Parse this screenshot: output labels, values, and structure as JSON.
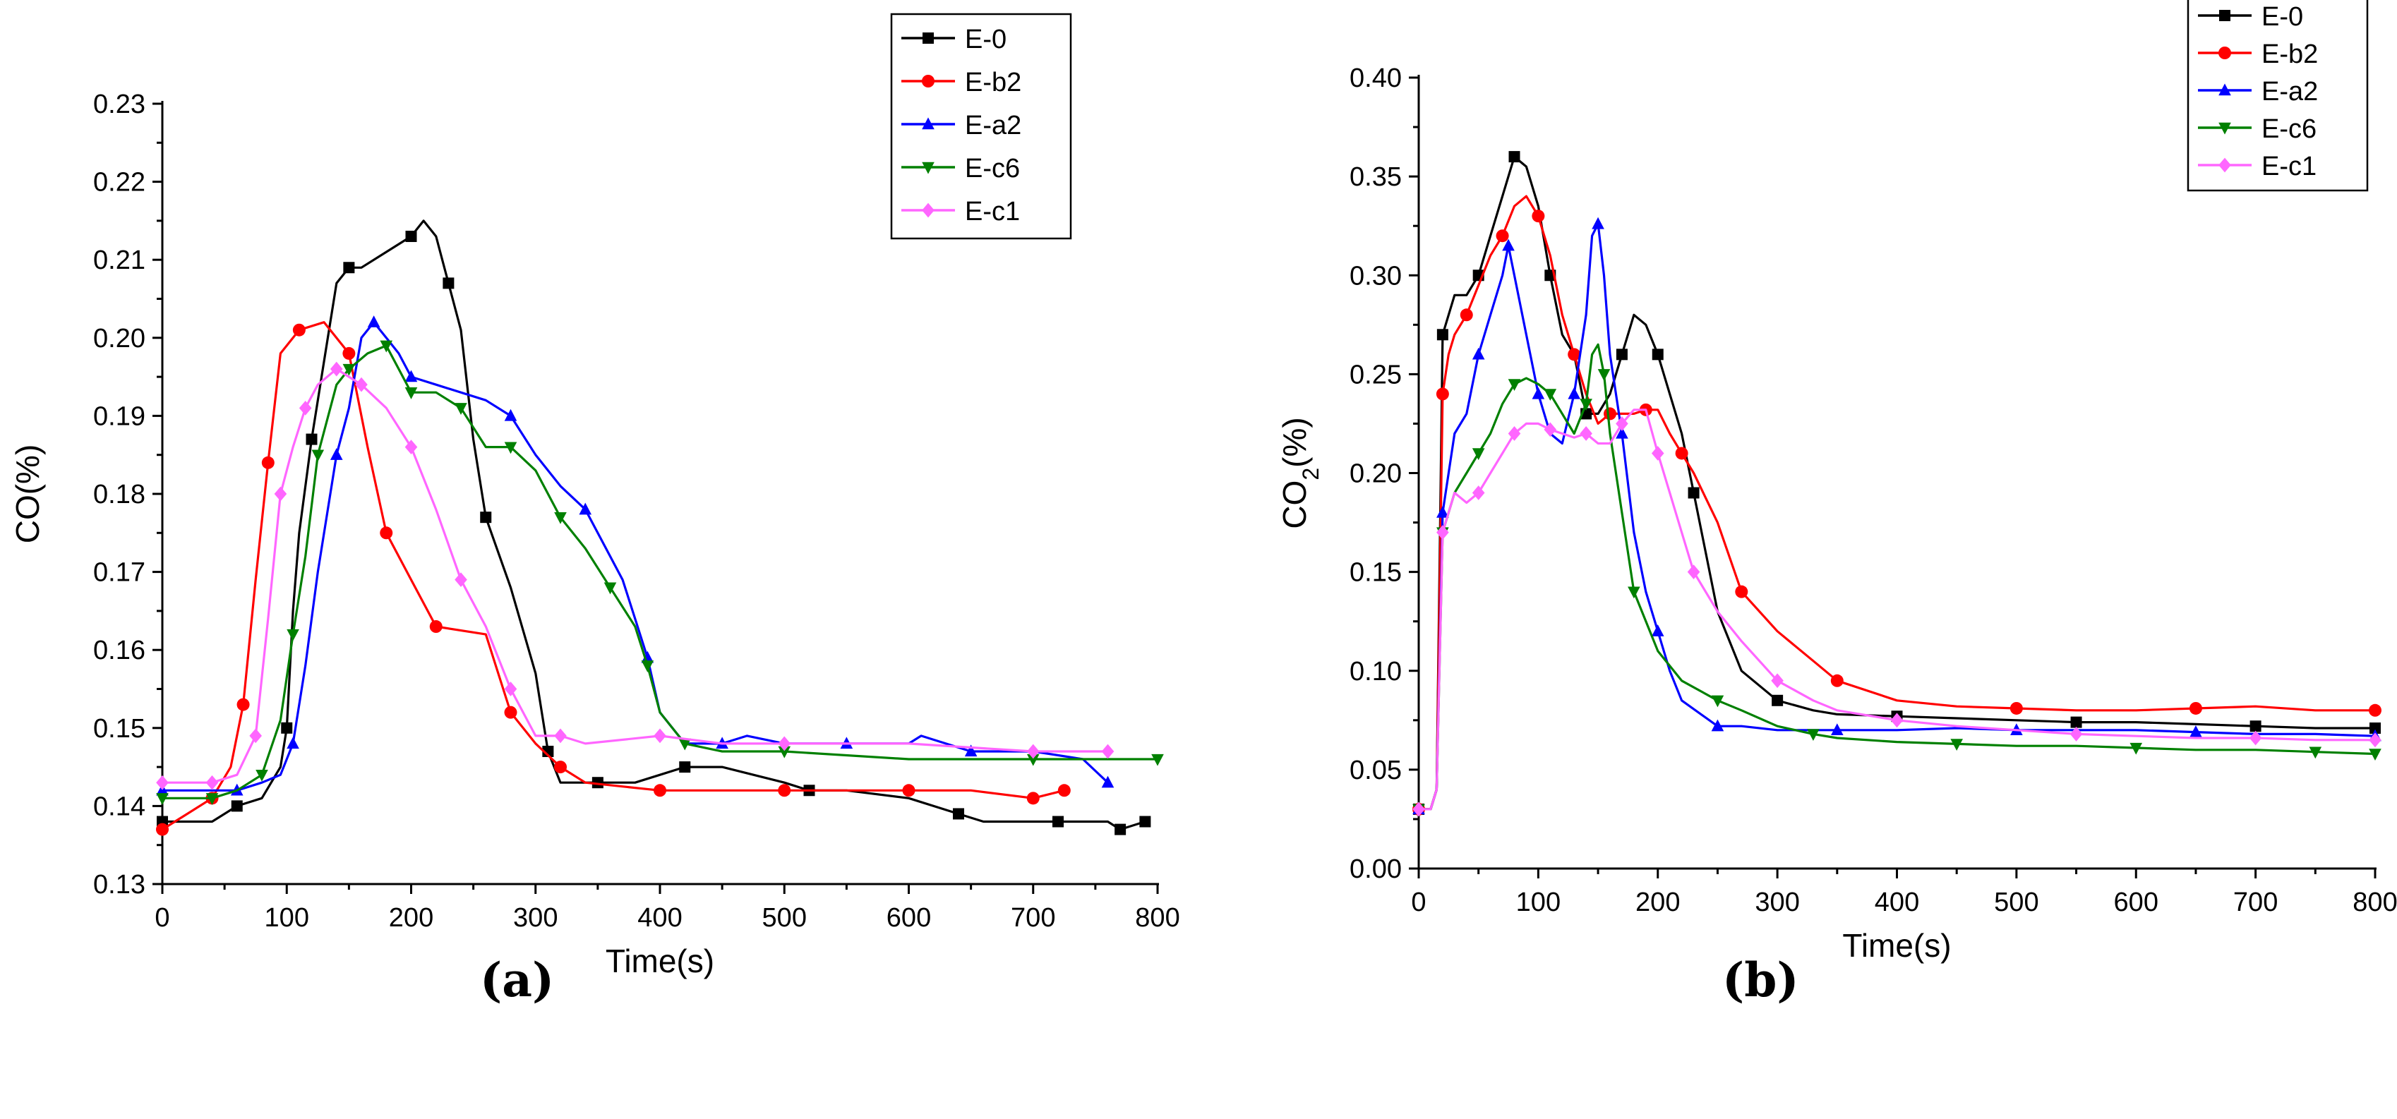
{
  "figure": {
    "panel_a_label": "(a)",
    "panel_b_label": "(b)"
  },
  "chart_data": [
    {
      "type": "line",
      "panel": "(a)",
      "xlabel": "Time(s)",
      "ylabel": "CO(%)",
      "xlim": [
        0,
        800
      ],
      "ylim": [
        0.13,
        0.23
      ],
      "xticks": [
        0,
        100,
        200,
        300,
        400,
        500,
        600,
        700,
        800
      ],
      "yticks": [
        0.13,
        0.14,
        0.15,
        0.16,
        0.17,
        0.18,
        0.19,
        0.2,
        0.21,
        0.22,
        0.23
      ],
      "xtick_labels": [
        "0",
        "100",
        "200",
        "300",
        "400",
        "500",
        "600",
        "700",
        "800"
      ],
      "ytick_labels": [
        "0.13",
        "0.14",
        "0.15",
        "0.16",
        "0.17",
        "0.18",
        "0.19",
        "0.20",
        "0.21",
        "0.22",
        "0.23"
      ],
      "legend_position": "top-right",
      "series": [
        {
          "name": "E-0",
          "color": "#000000",
          "marker": "square",
          "x": [
            0,
            20,
            40,
            60,
            80,
            95,
            100,
            105,
            110,
            120,
            130,
            140,
            150,
            160,
            180,
            200,
            210,
            220,
            230,
            240,
            250,
            260,
            280,
            300,
            310,
            320,
            330,
            350,
            380,
            400,
            420,
            450,
            500,
            520,
            550,
            600,
            640,
            660,
            700,
            720,
            740,
            760,
            770,
            790
          ],
          "y": [
            0.138,
            0.138,
            0.138,
            0.14,
            0.141,
            0.145,
            0.15,
            0.165,
            0.175,
            0.187,
            0.197,
            0.207,
            0.209,
            0.209,
            0.211,
            0.213,
            0.215,
            0.213,
            0.207,
            0.201,
            0.187,
            0.177,
            0.168,
            0.157,
            0.147,
            0.143,
            0.143,
            0.143,
            0.143,
            0.144,
            0.145,
            0.145,
            0.143,
            0.142,
            0.142,
            0.141,
            0.139,
            0.138,
            0.138,
            0.138,
            0.138,
            0.138,
            0.137,
            0.138
          ]
        },
        {
          "name": "E-b2",
          "color": "#ff0000",
          "marker": "circle",
          "x": [
            0,
            20,
            40,
            55,
            65,
            75,
            85,
            95,
            110,
            130,
            150,
            165,
            180,
            200,
            220,
            260,
            280,
            300,
            320,
            340,
            400,
            450,
            500,
            550,
            600,
            650,
            700,
            725
          ],
          "y": [
            0.137,
            0.139,
            0.141,
            0.145,
            0.153,
            0.169,
            0.184,
            0.198,
            0.201,
            0.202,
            0.198,
            0.186,
            0.175,
            0.169,
            0.163,
            0.162,
            0.152,
            0.148,
            0.145,
            0.143,
            0.142,
            0.142,
            0.142,
            0.142,
            0.142,
            0.142,
            0.141,
            0.142
          ]
        },
        {
          "name": "E-a2",
          "color": "#0000ff",
          "marker": "triangle-up",
          "x": [
            0,
            20,
            40,
            60,
            80,
            95,
            105,
            115,
            125,
            140,
            150,
            160,
            170,
            180,
            190,
            200,
            220,
            260,
            280,
            300,
            320,
            340,
            370,
            380,
            390,
            400,
            420,
            450,
            470,
            500,
            550,
            600,
            610,
            650,
            700,
            740,
            760
          ],
          "y": [
            0.142,
            0.142,
            0.142,
            0.142,
            0.143,
            0.144,
            0.148,
            0.158,
            0.17,
            0.185,
            0.191,
            0.2,
            0.202,
            0.2,
            0.198,
            0.195,
            0.194,
            0.192,
            0.19,
            0.185,
            0.181,
            0.178,
            0.169,
            0.164,
            0.159,
            0.152,
            0.148,
            0.148,
            0.149,
            0.148,
            0.148,
            0.148,
            0.149,
            0.147,
            0.147,
            0.146,
            0.143
          ]
        },
        {
          "name": "E-c6",
          "color": "#008000",
          "marker": "triangle-down",
          "x": [
            0,
            20,
            40,
            60,
            80,
            95,
            105,
            115,
            125,
            140,
            150,
            165,
            180,
            190,
            200,
            220,
            240,
            260,
            280,
            300,
            320,
            340,
            360,
            380,
            390,
            400,
            420,
            450,
            500,
            600,
            700,
            750,
            800
          ],
          "y": [
            0.141,
            0.141,
            0.141,
            0.142,
            0.144,
            0.151,
            0.162,
            0.172,
            0.185,
            0.194,
            0.196,
            0.198,
            0.199,
            0.196,
            0.193,
            0.193,
            0.191,
            0.186,
            0.186,
            0.183,
            0.177,
            0.173,
            0.168,
            0.163,
            0.158,
            0.152,
            0.148,
            0.147,
            0.147,
            0.146,
            0.146,
            0.146,
            0.146
          ]
        },
        {
          "name": "E-c1",
          "color": "#ff66ff",
          "marker": "diamond",
          "x": [
            0,
            20,
            40,
            60,
            75,
            85,
            95,
            105,
            115,
            125,
            140,
            150,
            160,
            180,
            200,
            220,
            240,
            260,
            280,
            300,
            320,
            340,
            400,
            450,
            500,
            600,
            700,
            760
          ],
          "y": [
            0.143,
            0.143,
            0.143,
            0.144,
            0.149,
            0.164,
            0.18,
            0.186,
            0.191,
            0.194,
            0.196,
            0.195,
            0.194,
            0.191,
            0.186,
            0.178,
            0.169,
            0.163,
            0.155,
            0.149,
            0.149,
            0.148,
            0.149,
            0.148,
            0.148,
            0.148,
            0.147,
            0.147
          ]
        }
      ]
    },
    {
      "type": "line",
      "panel": "(b)",
      "xlabel": "Time(s)",
      "ylabel": "CO2(%)",
      "xlim": [
        0,
        800
      ],
      "ylim": [
        0.0,
        0.4
      ],
      "xticks": [
        0,
        100,
        200,
        300,
        400,
        500,
        600,
        700,
        800
      ],
      "yticks": [
        0.0,
        0.05,
        0.1,
        0.15,
        0.2,
        0.25,
        0.3,
        0.35,
        0.4
      ],
      "xtick_labels": [
        "0",
        "100",
        "200",
        "300",
        "400",
        "500",
        "600",
        "700",
        "800"
      ],
      "ytick_labels": [
        "0.00",
        "0.05",
        "0.10",
        "0.15",
        "0.20",
        "0.25",
        "0.30",
        "0.35",
        "0.40"
      ],
      "legend_position": "top-right",
      "series": [
        {
          "name": "E-0",
          "color": "#000000",
          "marker": "square",
          "x": [
            0,
            10,
            15,
            20,
            30,
            40,
            50,
            60,
            70,
            80,
            90,
            100,
            110,
            120,
            130,
            140,
            150,
            160,
            170,
            180,
            190,
            200,
            210,
            220,
            230,
            250,
            270,
            300,
            330,
            350,
            400,
            450,
            500,
            550,
            600,
            650,
            700,
            750,
            800
          ],
          "y": [
            0.03,
            0.03,
            0.04,
            0.27,
            0.29,
            0.29,
            0.3,
            0.32,
            0.34,
            0.36,
            0.355,
            0.335,
            0.3,
            0.27,
            0.26,
            0.23,
            0.23,
            0.24,
            0.26,
            0.28,
            0.275,
            0.26,
            0.24,
            0.22,
            0.19,
            0.13,
            0.1,
            0.085,
            0.08,
            0.078,
            0.077,
            0.076,
            0.075,
            0.074,
            0.074,
            0.073,
            0.072,
            0.071,
            0.071
          ]
        },
        {
          "name": "E-b2",
          "color": "#ff0000",
          "marker": "circle",
          "x": [
            0,
            10,
            15,
            20,
            25,
            30,
            40,
            50,
            60,
            70,
            80,
            90,
            100,
            110,
            120,
            130,
            140,
            150,
            160,
            170,
            180,
            190,
            200,
            210,
            220,
            230,
            250,
            270,
            300,
            330,
            350,
            400,
            450,
            500,
            550,
            600,
            650,
            700,
            750,
            800
          ],
          "y": [
            0.03,
            0.03,
            0.04,
            0.24,
            0.26,
            0.27,
            0.28,
            0.295,
            0.31,
            0.32,
            0.335,
            0.34,
            0.33,
            0.31,
            0.28,
            0.26,
            0.24,
            0.225,
            0.23,
            0.23,
            0.23,
            0.232,
            0.232,
            0.22,
            0.21,
            0.2,
            0.175,
            0.14,
            0.12,
            0.105,
            0.095,
            0.085,
            0.082,
            0.081,
            0.08,
            0.08,
            0.081,
            0.082,
            0.08,
            0.08
          ]
        },
        {
          "name": "E-a2",
          "color": "#0000ff",
          "marker": "triangle-up",
          "x": [
            0,
            10,
            15,
            20,
            30,
            40,
            50,
            60,
            70,
            75,
            80,
            90,
            100,
            110,
            120,
            130,
            140,
            145,
            150,
            155,
            160,
            170,
            180,
            190,
            200,
            210,
            220,
            250,
            270,
            300,
            350,
            400,
            450,
            500,
            550,
            600,
            650,
            700,
            750,
            800
          ],
          "y": [
            0.03,
            0.03,
            0.04,
            0.18,
            0.22,
            0.23,
            0.26,
            0.28,
            0.3,
            0.315,
            0.3,
            0.27,
            0.24,
            0.22,
            0.215,
            0.24,
            0.28,
            0.32,
            0.326,
            0.3,
            0.26,
            0.22,
            0.17,
            0.14,
            0.12,
            0.1,
            0.085,
            0.072,
            0.072,
            0.07,
            0.07,
            0.07,
            0.071,
            0.07,
            0.07,
            0.07,
            0.069,
            0.068,
            0.068,
            0.067
          ]
        },
        {
          "name": "E-c6",
          "color": "#008000",
          "marker": "triangle-down",
          "x": [
            0,
            10,
            15,
            20,
            30,
            40,
            50,
            60,
            70,
            80,
            90,
            100,
            110,
            120,
            130,
            140,
            145,
            150,
            155,
            160,
            170,
            180,
            200,
            220,
            250,
            270,
            300,
            330,
            350,
            400,
            450,
            500,
            550,
            600,
            650,
            700,
            750,
            800
          ],
          "y": [
            0.03,
            0.03,
            0.04,
            0.17,
            0.19,
            0.2,
            0.21,
            0.22,
            0.235,
            0.245,
            0.248,
            0.245,
            0.24,
            0.23,
            0.22,
            0.235,
            0.26,
            0.265,
            0.25,
            0.22,
            0.18,
            0.14,
            0.11,
            0.095,
            0.085,
            0.08,
            0.072,
            0.068,
            0.066,
            0.064,
            0.063,
            0.062,
            0.062,
            0.061,
            0.06,
            0.06,
            0.059,
            0.058
          ]
        },
        {
          "name": "E-c1",
          "color": "#ff66ff",
          "marker": "diamond",
          "x": [
            0,
            10,
            15,
            20,
            30,
            40,
            50,
            60,
            70,
            80,
            90,
            100,
            110,
            120,
            130,
            140,
            150,
            160,
            170,
            180,
            190,
            200,
            210,
            220,
            230,
            250,
            270,
            300,
            330,
            350,
            400,
            450,
            500,
            550,
            600,
            650,
            700,
            750,
            800
          ],
          "y": [
            0.03,
            0.03,
            0.04,
            0.17,
            0.19,
            0.185,
            0.19,
            0.2,
            0.21,
            0.22,
            0.225,
            0.225,
            0.222,
            0.22,
            0.218,
            0.22,
            0.215,
            0.215,
            0.225,
            0.232,
            0.232,
            0.21,
            0.19,
            0.17,
            0.15,
            0.13,
            0.115,
            0.095,
            0.085,
            0.08,
            0.075,
            0.072,
            0.07,
            0.068,
            0.067,
            0.066,
            0.066,
            0.065,
            0.065
          ]
        }
      ]
    }
  ]
}
